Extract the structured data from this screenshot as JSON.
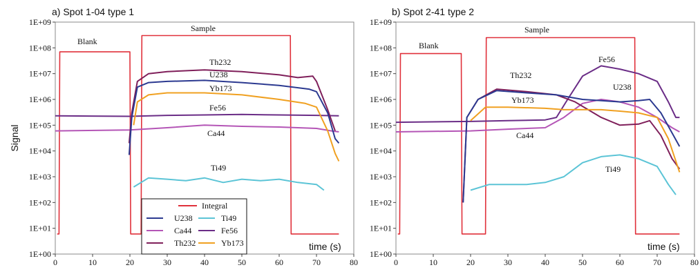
{
  "colors": {
    "Integral": "#e0303a",
    "U238": "#2b3990",
    "Ca44": "#b455b6",
    "Th232": "#7f1f5a",
    "Ti49": "#5bc4d6",
    "Fe56": "#6a2c86",
    "Yb173": "#f0a020"
  },
  "ylabel": "Signal",
  "legend": {
    "title": "Integral",
    "entries": [
      "U238",
      "Ti49",
      "Ca44",
      "Fe56",
      "Th232",
      "Yb173"
    ]
  },
  "chart_data": [
    {
      "type": "line",
      "title": "a) Spot 1-04 type 1",
      "xlabel": "time (s)",
      "ylabel": "Signal",
      "xlim": [
        0,
        80
      ],
      "ylim": [
        1,
        1000000000
      ],
      "yscale": "log",
      "xticks": [
        "0",
        "10",
        "20",
        "30",
        "40",
        "50",
        "60",
        "70",
        "80"
      ],
      "yticks": [
        "1E+00",
        "1E+01",
        "1E+02",
        "1E+03",
        "1E+04",
        "1E+05",
        "1E+06",
        "1E+07",
        "1E+08",
        "1E+09"
      ],
      "annotations": [
        "Blank",
        "Sample",
        "Th232",
        "U238",
        "Yb173",
        "Fe56",
        "Ca44",
        "Ti49"
      ],
      "legend_placement": "lower-middle",
      "series": [
        {
          "name": "Integral",
          "points": [
            [
              0.5,
              6
            ],
            [
              1,
              6
            ],
            [
              1.2,
              70000000
            ],
            [
              20,
              70000000
            ],
            [
              20.2,
              6
            ],
            [
              23,
              6
            ],
            [
              23.2,
              300000000
            ],
            [
              63,
              300000000
            ],
            [
              63.2,
              6
            ],
            [
              76,
              6
            ]
          ]
        },
        {
          "name": "Fe56",
          "points": [
            [
              0,
              230000
            ],
            [
              20,
              220000
            ],
            [
              30,
              240000
            ],
            [
              40,
              250000
            ],
            [
              50,
              260000
            ],
            [
              60,
              250000
            ],
            [
              70,
              240000
            ],
            [
              76,
              230000
            ]
          ]
        },
        {
          "name": "Ca44",
          "points": [
            [
              0,
              60000
            ],
            [
              20,
              65000
            ],
            [
              30,
              80000
            ],
            [
              40,
              100000
            ],
            [
              50,
              90000
            ],
            [
              60,
              85000
            ],
            [
              70,
              75000
            ],
            [
              74,
              60000
            ],
            [
              76,
              55000
            ]
          ]
        },
        {
          "name": "Th232",
          "points": [
            [
              19.8,
              20000
            ],
            [
              20.5,
              300000
            ],
            [
              22,
              5000000
            ],
            [
              25,
              10000000
            ],
            [
              30,
              12000000
            ],
            [
              40,
              14000000
            ],
            [
              50,
              12000000
            ],
            [
              60,
              9000000
            ],
            [
              65,
              7000000
            ],
            [
              69,
              8000000
            ],
            [
              70,
              5000000
            ],
            [
              73,
              400000
            ],
            [
              75,
              60000
            ]
          ]
        },
        {
          "name": "U238",
          "points": [
            [
              19.8,
              7000
            ],
            [
              20.5,
              200000
            ],
            [
              22,
              3000000
            ],
            [
              25,
              4500000
            ],
            [
              30,
              5000000
            ],
            [
              40,
              5500000
            ],
            [
              50,
              4500000
            ],
            [
              60,
              3500000
            ],
            [
              68,
              2500000
            ],
            [
              70,
              2000000
            ],
            [
              73,
              300000
            ],
            [
              75,
              30000
            ],
            [
              76,
              20000
            ]
          ]
        },
        {
          "name": "Yb173",
          "points": [
            [
              21,
              100000
            ],
            [
              22,
              800000
            ],
            [
              25,
              1500000
            ],
            [
              30,
              1800000
            ],
            [
              40,
              1800000
            ],
            [
              50,
              1500000
            ],
            [
              60,
              1000000
            ],
            [
              67,
              700000
            ],
            [
              70,
              500000
            ],
            [
              73,
              60000
            ],
            [
              75,
              8000
            ],
            [
              76,
              4000
            ]
          ]
        },
        {
          "name": "Ti49",
          "points": [
            [
              21,
              400
            ],
            [
              25,
              900
            ],
            [
              30,
              800
            ],
            [
              35,
              700
            ],
            [
              40,
              900
            ],
            [
              45,
              600
            ],
            [
              50,
              800
            ],
            [
              55,
              700
            ],
            [
              60,
              800
            ],
            [
              65,
              600
            ],
            [
              70,
              500
            ],
            [
              72,
              300
            ]
          ]
        }
      ]
    },
    {
      "type": "line",
      "title": "b) Spot 2-41 type 2",
      "xlabel": "time (s)",
      "ylabel": "",
      "xlim": [
        0,
        80
      ],
      "ylim": [
        1,
        1000000000
      ],
      "yscale": "log",
      "xticks": [
        "0",
        "10",
        "20",
        "30",
        "40",
        "50",
        "60",
        "70",
        "80"
      ],
      "yticks": [
        "1E+00",
        "1E+01",
        "1E+02",
        "1E+03",
        "1E+04",
        "1E+05",
        "1E+06",
        "1E+07",
        "1E+08",
        "1E+09"
      ],
      "annotations": [
        "Blank",
        "Sample",
        "Fe56",
        "Th232",
        "U238",
        "Yb173",
        "Ca44",
        "Ti49"
      ],
      "series": [
        {
          "name": "Integral",
          "points": [
            [
              0.5,
              6
            ],
            [
              1,
              6
            ],
            [
              1.2,
              60000000
            ],
            [
              17.5,
              60000000
            ],
            [
              17.7,
              6
            ],
            [
              24,
              6
            ],
            [
              24.2,
              250000000
            ],
            [
              64,
              250000000
            ],
            [
              64.2,
              6
            ],
            [
              76,
              6
            ]
          ]
        },
        {
          "name": "Fe56",
          "points": [
            [
              0,
              130000
            ],
            [
              20,
              140000
            ],
            [
              30,
              150000
            ],
            [
              40,
              160000
            ],
            [
              43,
              200000
            ],
            [
              46,
              1000000
            ],
            [
              50,
              8000000
            ],
            [
              55,
              20000000
            ],
            [
              60,
              15000000
            ],
            [
              65,
              10000000
            ],
            [
              70,
              5000000
            ],
            [
              73,
              800000
            ],
            [
              75,
              200000
            ],
            [
              76,
              200000
            ]
          ]
        },
        {
          "name": "Ca44",
          "points": [
            [
              0,
              55000
            ],
            [
              20,
              60000
            ],
            [
              30,
              70000
            ],
            [
              40,
              80000
            ],
            [
              45,
              200000
            ],
            [
              50,
              700000
            ],
            [
              55,
              1000000
            ],
            [
              60,
              800000
            ],
            [
              65,
              500000
            ],
            [
              70,
              200000
            ],
            [
              74,
              80000
            ],
            [
              76,
              55000
            ]
          ]
        },
        {
          "name": "Th232",
          "points": [
            [
              18,
              100
            ],
            [
              19,
              200000
            ],
            [
              22,
              1000000
            ],
            [
              27,
              2500000
            ],
            [
              35,
              2000000
            ],
            [
              43,
              1500000
            ],
            [
              48,
              800000
            ],
            [
              55,
              200000
            ],
            [
              60,
              100000
            ],
            [
              65,
              110000
            ],
            [
              68,
              150000
            ],
            [
              71,
              40000
            ],
            [
              74,
              5000
            ],
            [
              76,
              2000
            ]
          ]
        },
        {
          "name": "U238",
          "points": [
            [
              18,
              100
            ],
            [
              19,
              200000
            ],
            [
              22,
              1000000
            ],
            [
              27,
              2200000
            ],
            [
              35,
              1800000
            ],
            [
              43,
              1500000
            ],
            [
              50,
              1000000
            ],
            [
              55,
              900000
            ],
            [
              60,
              800000
            ],
            [
              65,
              900000
            ],
            [
              68,
              1000000
            ],
            [
              71,
              300000
            ],
            [
              74,
              50000
            ],
            [
              76,
              15000
            ]
          ]
        },
        {
          "name": "Yb173",
          "points": [
            [
              20,
              150000
            ],
            [
              24,
              500000
            ],
            [
              30,
              500000
            ],
            [
              40,
              450000
            ],
            [
              45,
              400000
            ],
            [
              55,
              400000
            ],
            [
              60,
              350000
            ],
            [
              65,
              300000
            ],
            [
              70,
              200000
            ],
            [
              73,
              30000
            ],
            [
              76,
              1500
            ]
          ]
        },
        {
          "name": "Ti49",
          "points": [
            [
              20,
              300
            ],
            [
              25,
              500
            ],
            [
              30,
              500
            ],
            [
              35,
              500
            ],
            [
              40,
              600
            ],
            [
              45,
              1000
            ],
            [
              50,
              3500
            ],
            [
              55,
              6000
            ],
            [
              60,
              7000
            ],
            [
              65,
              5000
            ],
            [
              70,
              2500
            ],
            [
              73,
              500
            ],
            [
              75,
              200
            ]
          ]
        }
      ]
    }
  ]
}
